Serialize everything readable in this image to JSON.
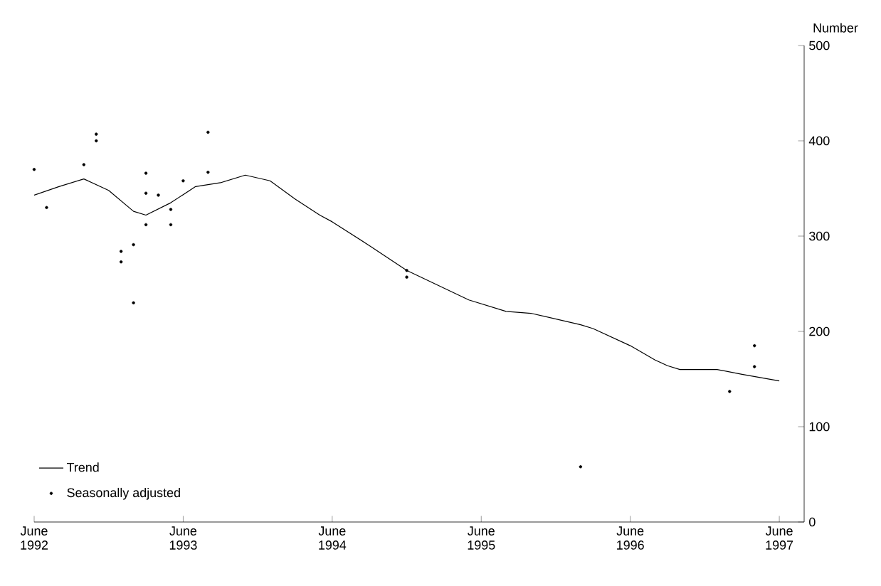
{
  "chart_data": {
    "type": "line",
    "ylabel": "Number",
    "x": [
      "1992-06",
      "1992-08",
      "1992-10",
      "1992-12",
      "1993-02",
      "1993-03",
      "1993-05",
      "1993-07",
      "1993-09",
      "1993-11",
      "1994-01",
      "1994-03",
      "1994-05",
      "1994-06",
      "1994-09",
      "1994-12",
      "1995-05",
      "1995-08",
      "1995-10",
      "1996-02",
      "1996-03",
      "1996-06",
      "1996-08",
      "1996-09",
      "1996-10",
      "1997-01",
      "1997-03",
      "1997-06"
    ],
    "series": [
      {
        "name": "Trend",
        "color": "#000000",
        "marker": "none",
        "values": [
          343,
          352,
          360,
          348,
          326,
          322,
          335,
          352,
          356,
          364,
          358,
          339,
          322,
          315,
          290,
          264,
          233,
          221,
          219,
          207,
          203,
          185,
          170,
          164,
          160,
          160,
          155,
          148
        ]
      },
      {
        "name": "Seasonally adjusted",
        "type": "scatter",
        "color": "#000000",
        "marker": "circle",
        "x": [
          "1992-06",
          "1992-07",
          "1992-10",
          "1992-11",
          "1992-11",
          "1993-01",
          "1993-01",
          "1993-02",
          "1993-02",
          "1993-03",
          "1993-03",
          "1993-03",
          "1993-04",
          "1993-05",
          "1993-05",
          "1993-06",
          "1993-08",
          "1993-08",
          "1994-12",
          "1994-12",
          "1996-02",
          "1997-02",
          "1997-04",
          "1997-04"
        ],
        "values": [
          370,
          330,
          375,
          407,
          400,
          284,
          273,
          230,
          291,
          312,
          366,
          345,
          343,
          312,
          328,
          358,
          409,
          367,
          264,
          257,
          58,
          137,
          163,
          185
        ]
      }
    ],
    "xlim": [
      "1992-06",
      "1997-08"
    ],
    "xticks": [
      {
        "value": "1992-06",
        "label": "June 1992"
      },
      {
        "value": "1993-06",
        "label": "June 1993"
      },
      {
        "value": "1994-06",
        "label": "June 1994"
      },
      {
        "value": "1995-06",
        "label": "June 1995"
      },
      {
        "value": "1996-06",
        "label": "June 1996"
      },
      {
        "value": "1997-06",
        "label": "June 1997"
      }
    ],
    "ylim": [
      0,
      500
    ],
    "yticks": [
      0,
      100,
      200,
      300,
      400,
      500
    ],
    "legend": "bottom left",
    "grid": false
  }
}
